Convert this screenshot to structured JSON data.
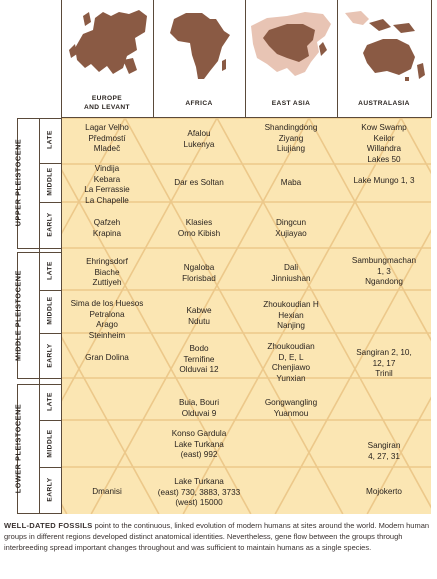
{
  "regions": [
    "EUROPE\nAND LEVANT",
    "AFRICA",
    "EAST ASIA",
    "AUSTRALASIA"
  ],
  "epochs": [
    {
      "label": "UPPER PLEISTOCENE",
      "subs": [
        "LATE",
        "MIDDLE",
        "EARLY"
      ]
    },
    {
      "label": "MIDDLE PLEISTOCENE",
      "subs": [
        "LATE",
        "MIDDLE",
        "EARLY"
      ]
    },
    {
      "label": "LOWER PLEISTOCENE",
      "subs": [
        "LATE",
        "MIDDLE",
        "EARLY"
      ]
    }
  ],
  "cells": {
    "upper_late": [
      "Lagar Velho\nPředmostí\nMladeč",
      "Afalou\nLukenya",
      "Shandingdong\nZiyang\nLiujiang",
      "Kow Swamp\nKeilor\nWillandra\nLakes 50"
    ],
    "upper_middle": [
      "Vindija\nKebara\nLa Ferrassie\nLa Chapelle",
      "Dar es Soltan",
      "Maba",
      "Lake Mungo 1, 3"
    ],
    "upper_early": [
      "Qafzeh\nKrapina",
      "Klasies\nOmo Kibish",
      "Dingcun\nXujiayao",
      ""
    ],
    "middle_late": [
      "Ehringsdorf\nBiache\nZuttiyeh",
      "Ngaloba\nFlorisbad",
      "Dali\nJinniushan",
      "Sambungmachan\n1, 3\nNgandong"
    ],
    "middle_middle": [
      "Sima de los Huesos\nPetralona\nArago\nSteinheim",
      "Kabwe\nNdutu",
      "Zhoukoudian H\nHexian\nNanjing",
      ""
    ],
    "middle_early": [
      "Gran Dolina",
      "Bodo\nTernifine\nOlduvai 12",
      "Zhoukoudian\nD, E, L\nChenjiawo\nYunxian",
      "Sangiran 2, 10,\n12, 17\nTrinil"
    ],
    "lower_late": [
      "",
      "Buia, Bouri\nOlduvai 9",
      "Gongwangling\nYuanmou",
      ""
    ],
    "lower_middle": [
      "",
      "Konso Gardula\nLake Turkana\n(east) 992",
      "",
      "Sangiran\n4, 27, 31"
    ],
    "lower_early": [
      "Dmanisi",
      "Lake Turkana\n(east) 730, 3883, 3733\n(west) 15000",
      "",
      "Mojokerto"
    ]
  },
  "caption": {
    "lead": "WELL-DATED FOSSILS",
    "text": " point to the continuous, linked evolution of modern humans at sites around the world. Modern human groups in different regions developed distinct anatomical identities. Nevertheless, gene flow between the groups through interbreeding spread important changes throughout and was sufficient to maintain humans as a single species."
  },
  "colors": {
    "table": "#fbe6b3",
    "grid": "#ecc88a",
    "map_brown": "#8a5a44",
    "map_light": "#e8c4b4",
    "border": "#5a4a3a"
  }
}
